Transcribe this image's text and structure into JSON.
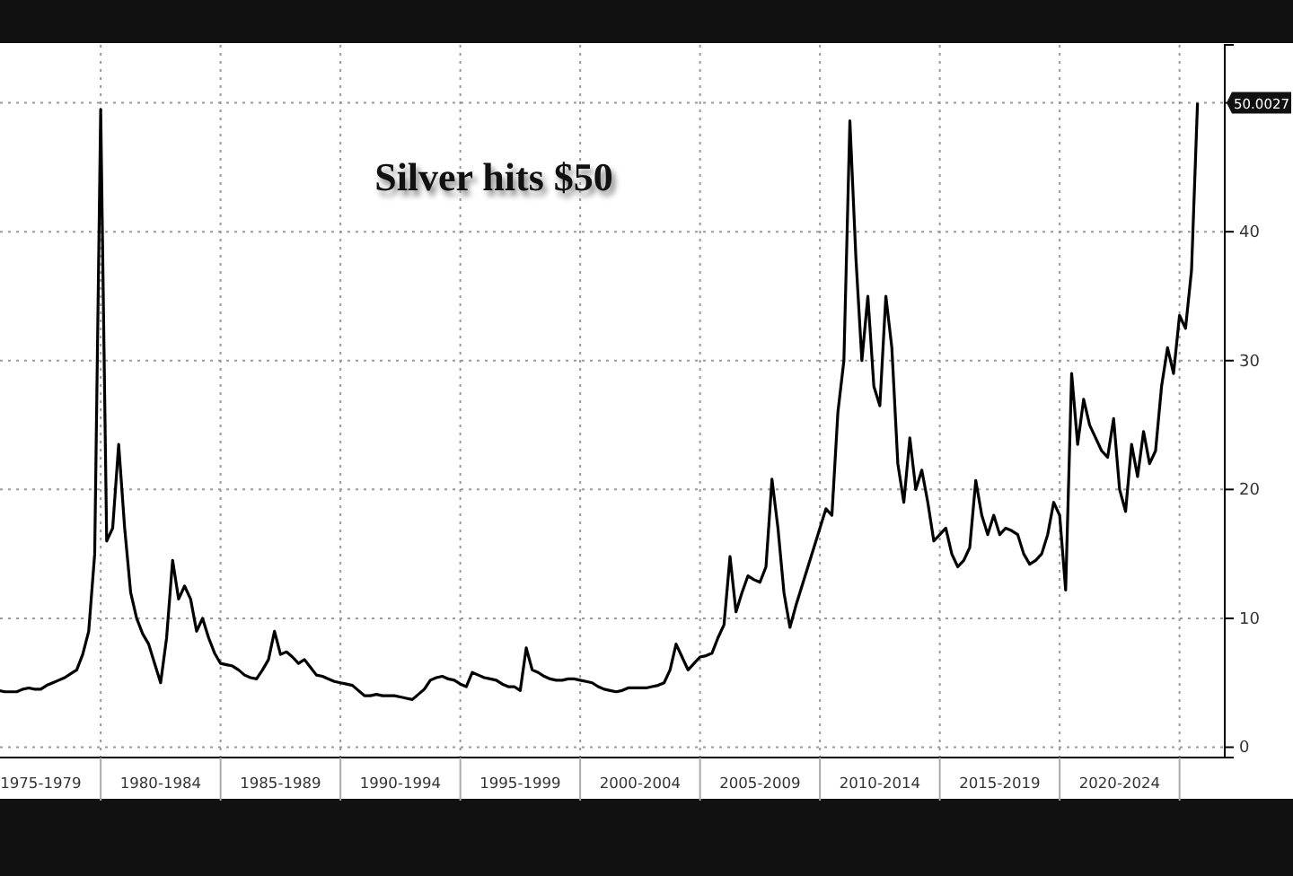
{
  "chart_data": {
    "type": "line",
    "title": "Silver hits $50",
    "categories": [
      null,
      null,
      null,
      null,
      null,
      null,
      null,
      "1975-1979",
      null,
      null,
      null,
      null,
      null,
      null,
      null,
      null,
      null,
      null,
      null,
      null,
      null,
      null,
      null,
      null,
      null,
      null,
      null,
      "1980-1984",
      null,
      null,
      null,
      null,
      null,
      null,
      null,
      null,
      null,
      null,
      null,
      null,
      null,
      null,
      null,
      null,
      null,
      null,
      null,
      "1985-1989",
      null,
      null,
      null,
      null,
      null,
      null,
      null,
      null,
      null,
      null,
      null,
      null,
      null,
      null,
      null,
      null,
      null,
      null,
      null,
      "1990-1994",
      null,
      null,
      null,
      null,
      null,
      null,
      null,
      null,
      null,
      null,
      null,
      null,
      null,
      null,
      null,
      null,
      null,
      null,
      null,
      "1995-1999",
      null,
      null,
      null,
      null,
      null,
      null,
      null,
      null,
      null,
      null,
      null,
      null,
      null,
      null,
      null,
      null,
      null,
      null,
      null,
      "2000-2004",
      null,
      null,
      null,
      null,
      null,
      null,
      null,
      null,
      null,
      null,
      null,
      null,
      null,
      null,
      null,
      null,
      null,
      null,
      null,
      "2005-2009",
      null,
      null,
      null,
      null,
      null,
      null,
      null,
      null,
      null,
      null,
      null,
      null,
      null,
      null,
      null,
      null,
      null,
      null,
      null,
      "2010-2014",
      null,
      null,
      null,
      null,
      null,
      null,
      null,
      null,
      null,
      null,
      null,
      null,
      null,
      null,
      null,
      null,
      null,
      null,
      null,
      "2015-2019",
      null,
      null,
      null,
      null,
      null,
      null,
      null,
      null,
      null,
      null,
      null,
      null,
      null,
      null,
      null,
      null,
      null,
      null,
      null,
      "2020-2024",
      null,
      null,
      null,
      null,
      null,
      null,
      null,
      null,
      null,
      null,
      null,
      null,
      null
    ],
    "values": [
      4.4,
      4.3,
      4.3,
      4.3,
      4.5,
      4.6,
      4.5,
      4.5,
      4.8,
      5.0,
      5.2,
      5.4,
      5.7,
      6.0,
      7.2,
      9,
      15,
      49.5,
      16,
      17,
      23.5,
      17,
      12,
      10,
      8.8,
      8,
      6.5,
      5.0,
      8.5,
      14.5,
      11.5,
      12.5,
      11.5,
      9,
      10,
      8.5,
      7.3,
      6.5,
      6.4,
      6.3,
      6.0,
      5.6,
      5.4,
      5.3,
      6.0,
      6.8,
      9.0,
      7.2,
      7.4,
      7.0,
      6.5,
      6.8,
      6.2,
      5.6,
      5.5,
      5.3,
      5.1,
      5.0,
      4.9,
      4.8,
      4.4,
      4.0,
      4.0,
      4.1,
      4.0,
      4.0,
      4.0,
      3.9,
      3.8,
      3.7,
      4.1,
      4.5,
      5.2,
      5.4,
      5.5,
      5.3,
      5.2,
      4.9,
      4.7,
      5.8,
      5.6,
      5.4,
      5.3,
      5.2,
      4.9,
      4.7,
      4.7,
      4.4,
      7.7,
      6.0,
      5.8,
      5.5,
      5.3,
      5.2,
      5.2,
      5.3,
      5.3,
      5.2,
      5.1,
      5.0,
      4.7,
      4.5,
      4.4,
      4.3,
      4.4,
      4.6,
      4.6,
      4.6,
      4.6,
      4.7,
      4.8,
      5.0,
      6.0,
      8.0,
      7.0,
      6.0,
      6.5,
      7.0,
      7.1,
      7.3,
      8.5,
      9.5,
      14.8,
      10.5,
      12,
      13.3,
      13,
      12.8,
      14.0,
      20.8,
      17,
      12,
      9.3,
      11,
      12.5,
      14,
      15.5,
      17,
      18.5,
      18,
      26,
      30,
      48.6,
      38,
      30,
      35,
      28,
      26.5,
      35,
      31,
      22,
      19,
      24,
      20,
      21.5,
      19,
      16,
      16.5,
      17,
      15,
      14,
      14.5,
      15.5,
      20.7,
      18,
      16.5,
      18,
      16.5,
      17,
      16.8,
      16.5,
      15,
      14.2,
      14.5,
      15,
      16.5,
      19,
      18,
      12.2,
      29,
      23.5,
      27,
      25,
      24,
      23,
      22.5,
      25.5,
      20,
      18.3,
      23.5,
      21,
      24.5,
      22,
      23,
      28,
      31,
      29,
      33.5,
      32.5,
      37,
      50.0027
    ],
    "color": "#000000",
    "ylim": [
      -0.8,
      54.5
    ],
    "yticks": [
      0,
      10,
      20,
      30,
      40,
      {
        "value": 50,
        "label": null
      }
    ],
    "grid": true,
    "marker": "none",
    "line_style": "solid",
    "annotations": [
      "50.0027"
    ]
  }
}
